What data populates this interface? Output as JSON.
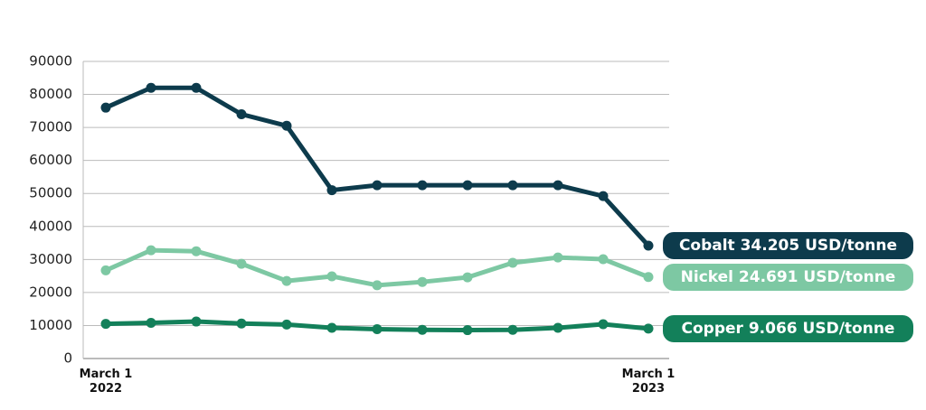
{
  "chart_data": {
    "type": "line",
    "categories": [
      "March 1 2022",
      null,
      null,
      null,
      null,
      null,
      null,
      null,
      null,
      null,
      null,
      null,
      "March 1 2023"
    ],
    "series": [
      {
        "name": "Cobalt 34.205 USD/tonne",
        "color": "#0d3b4c",
        "values": [
          76000,
          82000,
          82000,
          74000,
          70500,
          51000,
          52500,
          52500,
          52500,
          52500,
          52500,
          49200,
          34205
        ]
      },
      {
        "name": "Nickel 24.691 USD/tonne",
        "color": "#7dc8a3",
        "values": [
          26700,
          32800,
          32500,
          28700,
          23500,
          24900,
          22200,
          23200,
          24600,
          29000,
          30600,
          30100,
          24691
        ]
      },
      {
        "name": "Copper 9.066 USD/tonne",
        "color": "#13805a",
        "values": [
          10500,
          10800,
          11200,
          10600,
          10300,
          9300,
          8900,
          8700,
          8600,
          8700,
          9300,
          10400,
          9066
        ]
      }
    ],
    "ylim": [
      0,
      90000
    ],
    "yticks": [
      0,
      10000,
      20000,
      30000,
      40000,
      50000,
      60000,
      70000,
      80000,
      90000
    ],
    "grid": true
  }
}
